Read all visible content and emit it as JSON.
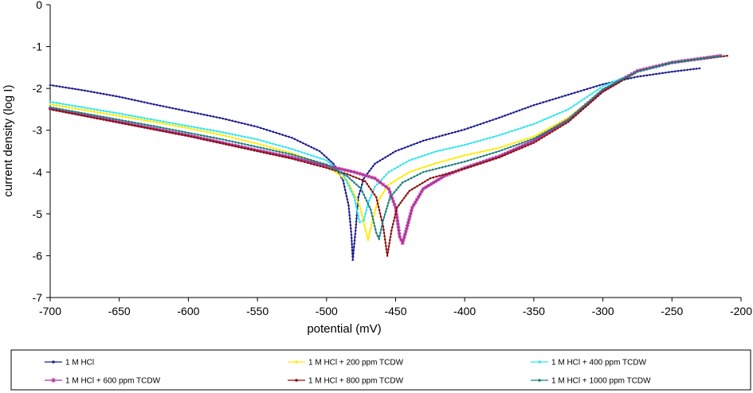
{
  "chart_data": {
    "type": "line",
    "xlabel": "potential (mV)",
    "ylabel": "current density (log I)",
    "xlim": [
      -700,
      -200
    ],
    "ylim": [
      -7,
      0
    ],
    "x_ticks": [
      "-700",
      "-650",
      "-600",
      "-550",
      "-500",
      "-450",
      "-400",
      "-350",
      "-300",
      "-250",
      "-200"
    ],
    "y_ticks": [
      "0",
      "-1",
      "-2",
      "-3",
      "-4",
      "-5",
      "-6",
      "-7"
    ],
    "grid": false,
    "legend_position": "bottom",
    "series": [
      {
        "name": "1 M HCl",
        "color": "#1f1f8f",
        "marker": "dot",
        "points": [
          [
            -700,
            -1.92
          ],
          [
            -675,
            -2.05
          ],
          [
            -650,
            -2.2
          ],
          [
            -625,
            -2.38
          ],
          [
            -600,
            -2.55
          ],
          [
            -575,
            -2.72
          ],
          [
            -550,
            -2.92
          ],
          [
            -525,
            -3.18
          ],
          [
            -505,
            -3.5
          ],
          [
            -495,
            -3.8
          ],
          [
            -488,
            -4.2
          ],
          [
            -484,
            -4.8
          ],
          [
            -482,
            -5.5
          ],
          [
            -481,
            -6.1
          ],
          [
            -479,
            -5.4
          ],
          [
            -477,
            -4.6
          ],
          [
            -473,
            -4.15
          ],
          [
            -465,
            -3.8
          ],
          [
            -450,
            -3.5
          ],
          [
            -430,
            -3.25
          ],
          [
            -400,
            -2.98
          ],
          [
            -375,
            -2.7
          ],
          [
            -350,
            -2.4
          ],
          [
            -325,
            -2.15
          ],
          [
            -300,
            -1.9
          ],
          [
            -275,
            -1.72
          ],
          [
            -250,
            -1.6
          ],
          [
            -230,
            -1.52
          ]
        ]
      },
      {
        "name": "1 M HCl + 200 ppm TCDW",
        "color": "#ffea00",
        "marker": "dot",
        "points": [
          [
            -700,
            -2.38
          ],
          [
            -675,
            -2.52
          ],
          [
            -650,
            -2.66
          ],
          [
            -625,
            -2.8
          ],
          [
            -600,
            -2.95
          ],
          [
            -575,
            -3.12
          ],
          [
            -550,
            -3.32
          ],
          [
            -525,
            -3.55
          ],
          [
            -500,
            -3.85
          ],
          [
            -485,
            -4.2
          ],
          [
            -476,
            -4.8
          ],
          [
            -472,
            -5.35
          ],
          [
            -470,
            -5.62
          ],
          [
            -467,
            -5.2
          ],
          [
            -463,
            -4.7
          ],
          [
            -455,
            -4.3
          ],
          [
            -440,
            -4.0
          ],
          [
            -420,
            -3.78
          ],
          [
            -400,
            -3.6
          ],
          [
            -375,
            -3.42
          ],
          [
            -350,
            -3.15
          ],
          [
            -325,
            -2.7
          ],
          [
            -300,
            -2.05
          ],
          [
            -275,
            -1.58
          ],
          [
            -250,
            -1.38
          ],
          [
            -220,
            -1.24
          ]
        ]
      },
      {
        "name": "1 M HCl + 400 ppm TCDW",
        "color": "#33e5ee",
        "marker": "dot",
        "points": [
          [
            -700,
            -2.32
          ],
          [
            -675,
            -2.46
          ],
          [
            -650,
            -2.6
          ],
          [
            -625,
            -2.75
          ],
          [
            -600,
            -2.9
          ],
          [
            -575,
            -3.05
          ],
          [
            -550,
            -3.22
          ],
          [
            -525,
            -3.45
          ],
          [
            -500,
            -3.72
          ],
          [
            -488,
            -4.05
          ],
          [
            -480,
            -4.6
          ],
          [
            -476,
            -5.2
          ],
          [
            -473,
            -5.15
          ],
          [
            -470,
            -4.75
          ],
          [
            -465,
            -4.35
          ],
          [
            -455,
            -4.0
          ],
          [
            -440,
            -3.72
          ],
          [
            -420,
            -3.5
          ],
          [
            -400,
            -3.35
          ],
          [
            -375,
            -3.12
          ],
          [
            -350,
            -2.85
          ],
          [
            -325,
            -2.5
          ],
          [
            -300,
            -1.95
          ],
          [
            -275,
            -1.6
          ],
          [
            -250,
            -1.4
          ],
          [
            -220,
            -1.25
          ]
        ]
      },
      {
        "name": "1 M HCl + 600 ppm TCDW",
        "color": "#b0309b",
        "marker": "star",
        "points": [
          [
            -700,
            -2.48
          ],
          [
            -675,
            -2.64
          ],
          [
            -650,
            -2.8
          ],
          [
            -625,
            -2.96
          ],
          [
            -600,
            -3.12
          ],
          [
            -575,
            -3.3
          ],
          [
            -550,
            -3.48
          ],
          [
            -525,
            -3.65
          ],
          [
            -500,
            -3.85
          ],
          [
            -480,
            -4.0
          ],
          [
            -465,
            -4.15
          ],
          [
            -455,
            -4.4
          ],
          [
            -450,
            -4.85
          ],
          [
            -447,
            -5.55
          ],
          [
            -445,
            -5.7
          ],
          [
            -442,
            -5.35
          ],
          [
            -438,
            -4.85
          ],
          [
            -430,
            -4.4
          ],
          [
            -415,
            -4.1
          ],
          [
            -400,
            -3.9
          ],
          [
            -375,
            -3.62
          ],
          [
            -350,
            -3.25
          ],
          [
            -325,
            -2.75
          ],
          [
            -300,
            -2.05
          ],
          [
            -275,
            -1.58
          ],
          [
            -250,
            -1.38
          ],
          [
            -215,
            -1.22
          ]
        ]
      },
      {
        "name": "1 M HCl + 800 ppm TCDW",
        "color": "#8b1111",
        "marker": "dot",
        "points": [
          [
            -700,
            -2.5
          ],
          [
            -675,
            -2.66
          ],
          [
            -650,
            -2.82
          ],
          [
            -625,
            -2.98
          ],
          [
            -600,
            -3.14
          ],
          [
            -575,
            -3.32
          ],
          [
            -550,
            -3.5
          ],
          [
            -525,
            -3.68
          ],
          [
            -500,
            -3.9
          ],
          [
            -485,
            -4.05
          ],
          [
            -472,
            -4.22
          ],
          [
            -464,
            -4.6
          ],
          [
            -459,
            -5.3
          ],
          [
            -456,
            -6.0
          ],
          [
            -453,
            -5.4
          ],
          [
            -449,
            -4.85
          ],
          [
            -440,
            -4.45
          ],
          [
            -425,
            -4.15
          ],
          [
            -400,
            -3.92
          ],
          [
            -375,
            -3.65
          ],
          [
            -350,
            -3.3
          ],
          [
            -325,
            -2.8
          ],
          [
            -300,
            -2.08
          ],
          [
            -275,
            -1.6
          ],
          [
            -250,
            -1.38
          ],
          [
            -210,
            -1.22
          ]
        ]
      },
      {
        "name": "1 M HCl + 1000 ppm TCDW",
        "color": "#1f7f7f",
        "marker": "dot",
        "points": [
          [
            -700,
            -2.45
          ],
          [
            -675,
            -2.6
          ],
          [
            -650,
            -2.75
          ],
          [
            -625,
            -2.9
          ],
          [
            -600,
            -3.06
          ],
          [
            -575,
            -3.22
          ],
          [
            -550,
            -3.4
          ],
          [
            -525,
            -3.58
          ],
          [
            -500,
            -3.82
          ],
          [
            -485,
            -4.1
          ],
          [
            -475,
            -4.4
          ],
          [
            -468,
            -4.9
          ],
          [
            -464,
            -5.45
          ],
          [
            -462,
            -5.6
          ],
          [
            -459,
            -5.15
          ],
          [
            -454,
            -4.6
          ],
          [
            -445,
            -4.25
          ],
          [
            -430,
            -4.0
          ],
          [
            -400,
            -3.75
          ],
          [
            -375,
            -3.5
          ],
          [
            -350,
            -3.2
          ],
          [
            -325,
            -2.75
          ],
          [
            -300,
            -2.02
          ],
          [
            -275,
            -1.6
          ],
          [
            -250,
            -1.38
          ],
          [
            -215,
            -1.23
          ]
        ]
      }
    ]
  }
}
